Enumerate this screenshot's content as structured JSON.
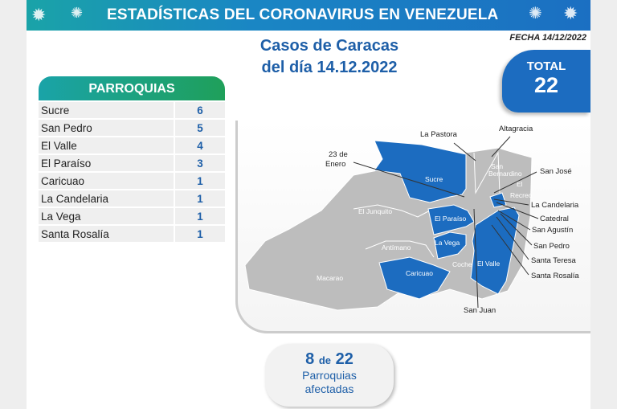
{
  "header": {
    "title": "ESTADÍSTICAS DEL CORONAVIRUS EN VENEZUELA",
    "date": "FECHA 14/12/2022"
  },
  "heading": {
    "line1": "Casos de Caracas",
    "line2": "del día 14.12.2022"
  },
  "total": {
    "label": "TOTAL",
    "value": "22"
  },
  "table": {
    "title": "PARROQUIAS",
    "rows": [
      {
        "name": "Sucre",
        "count": "6"
      },
      {
        "name": "San Pedro",
        "count": "5"
      },
      {
        "name": "El Valle",
        "count": "4"
      },
      {
        "name": "El Paraíso",
        "count": "3"
      },
      {
        "name": "Caricuao",
        "count": "1"
      },
      {
        "name": "La Candelaria",
        "count": "1"
      },
      {
        "name": "La Vega",
        "count": "1"
      },
      {
        "name": "Santa Rosalía",
        "count": "1"
      }
    ]
  },
  "map": {
    "labels": {
      "la_pastora": "La Pastora",
      "altagracia": "Altagracia",
      "enero1": "23 de",
      "enero2": "Enero",
      "san_jose": "San José",
      "la_candelaria": "La Candelaria",
      "catedral": "Catedral",
      "san_agustin": "San Agustín",
      "san_pedro": "San Pedro",
      "santa_teresa": "Santa Teresa",
      "santa_rosalia": "Santa Rosalía",
      "san_juan": "San Juan",
      "sucre": "Sucre",
      "el_junquito": "El Junquito",
      "el_paraiso": "El Paraíso",
      "la_vega": "La Vega",
      "antimano": "Antímano",
      "macarao": "Macarao",
      "caricuao": "Caricuao",
      "coche": "Coche",
      "el_valle": "El Valle",
      "san_bernardino1": "San",
      "san_bernardino2": "Bernardino",
      "el_recreo1": "El",
      "el_recreo2": "Recreo"
    },
    "colors": {
      "affected": "#1c6cc0",
      "unaffected": "#bdbdbd"
    }
  },
  "summary": {
    "affected": "8",
    "of": "de",
    "total": "22",
    "line1": "Parroquias",
    "line2": "afectadas"
  }
}
